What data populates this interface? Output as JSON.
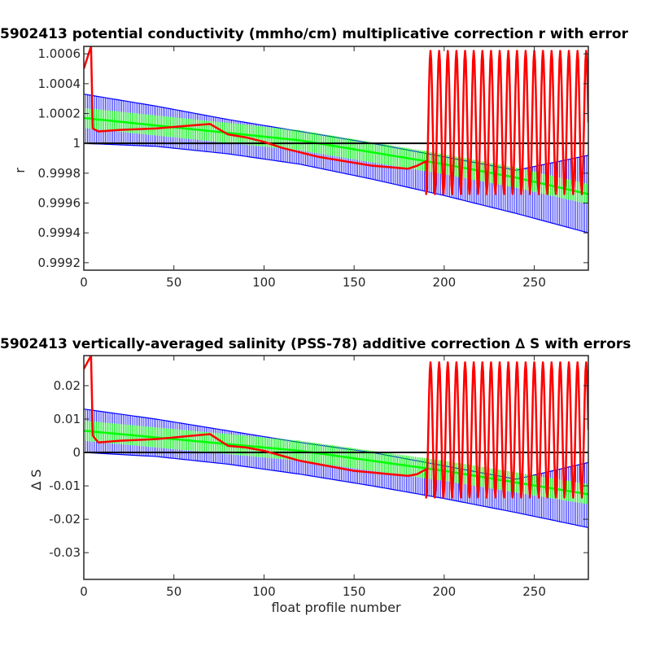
{
  "chart_data": [
    {
      "type": "line",
      "title": "5902413 potential conductivity (mmho/cm) multiplicative correction r with error",
      "xlabel": "",
      "ylabel": "r",
      "xlim": [
        0,
        280
      ],
      "ylim": [
        0.99915,
        1.00065
      ],
      "x_ticks": [
        "0",
        "50",
        "100",
        "150",
        "200",
        "250"
      ],
      "y_ticks": [
        "0.9992",
        "0.9994",
        "0.9996",
        "0.9998",
        "1",
        "1.0002",
        "1.0004",
        "1.0006"
      ],
      "reference_line": 1.0,
      "series": [
        {
          "color": "#0000ff",
          "style": "error band (upper / lower bounds with vertical error bars)",
          "x": [
            0,
            40,
            80,
            120,
            160,
            200,
            240,
            280
          ],
          "upper": [
            1.00033,
            1.00025,
            1.00016,
            1.00008,
            1.0,
            0.99991,
            0.99982,
            0.99992
          ],
          "lower": [
            1.0,
            0.99998,
            0.99993,
            0.99986,
            0.99976,
            0.99965,
            0.99953,
            0.9994
          ]
        },
        {
          "color": "#00ff00",
          "style": "fit with error bars",
          "x": [
            0,
            40,
            80,
            120,
            160,
            200,
            240,
            280
          ],
          "values": [
            1.00017,
            1.00012,
            1.00007,
            1.00002,
            0.99994,
            0.99986,
            0.99977,
            0.99966
          ]
        },
        {
          "color": "#ff0000",
          "style": "line",
          "x": [
            0,
            4,
            5,
            8,
            20,
            40,
            50,
            60,
            70,
            80,
            90,
            100,
            110,
            120,
            130,
            140,
            150,
            160,
            170,
            180,
            185,
            190
          ],
          "values": [
            1.0005,
            1.00065,
            1.0001,
            1.00008,
            1.00009,
            1.0001,
            1.00011,
            1.00012,
            1.00013,
            1.00006,
            1.00004,
            1.00001,
            0.99997,
            0.99994,
            0.99991,
            0.99989,
            0.99987,
            0.99985,
            0.99984,
            0.99983,
            0.99985,
            0.99988
          ],
          "oscillation": {
            "x_start": 190,
            "x_end": 280,
            "period": 4.8,
            "low": 0.99966,
            "high": 1.00062
          }
        }
      ]
    },
    {
      "type": "line",
      "title": "5902413 vertically-averaged salinity (PSS-78) additive correction ∆ S with errors",
      "xlabel": "float profile number",
      "ylabel": "∆ S",
      "xlim": [
        0,
        280
      ],
      "ylim": [
        -0.038,
        0.029
      ],
      "x_ticks": [
        "0",
        "50",
        "100",
        "150",
        "200",
        "250"
      ],
      "y_ticks": [
        "-0.03",
        "-0.02",
        "-0.01",
        "0",
        "0.01",
        "0.02"
      ],
      "reference_line": 0,
      "series": [
        {
          "color": "#0000ff",
          "style": "error band (upper / lower bounds with vertical error bars)",
          "x": [
            0,
            40,
            80,
            120,
            160,
            200,
            240,
            280
          ],
          "upper": [
            0.013,
            0.01,
            0.0065,
            0.003,
            0.0,
            -0.004,
            -0.008,
            -0.003
          ],
          "lower": [
            0.0,
            -0.0012,
            -0.0035,
            -0.0065,
            -0.01,
            -0.0138,
            -0.018,
            -0.0225
          ]
        },
        {
          "color": "#00ff00",
          "style": "fit with error bars",
          "x": [
            0,
            40,
            80,
            120,
            160,
            200,
            240,
            280
          ],
          "values": [
            0.0065,
            0.0045,
            0.0025,
            0.0005,
            -0.0025,
            -0.0055,
            -0.009,
            -0.0125
          ]
        },
        {
          "color": "#ff0000",
          "style": "line",
          "x": [
            0,
            4,
            5,
            8,
            20,
            40,
            50,
            60,
            70,
            80,
            90,
            100,
            110,
            120,
            130,
            140,
            150,
            160,
            170,
            180,
            185,
            190
          ],
          "values": [
            0.025,
            0.029,
            0.005,
            0.003,
            0.0035,
            0.004,
            0.0045,
            0.005,
            0.0055,
            0.002,
            0.0015,
            0.0005,
            -0.001,
            -0.0025,
            -0.0035,
            -0.0045,
            -0.0055,
            -0.006,
            -0.0065,
            -0.007,
            -0.0065,
            -0.005
          ],
          "oscillation": {
            "x_start": 190,
            "x_end": 280,
            "period": 4.8,
            "low": -0.0135,
            "high": 0.027
          }
        }
      ]
    }
  ]
}
